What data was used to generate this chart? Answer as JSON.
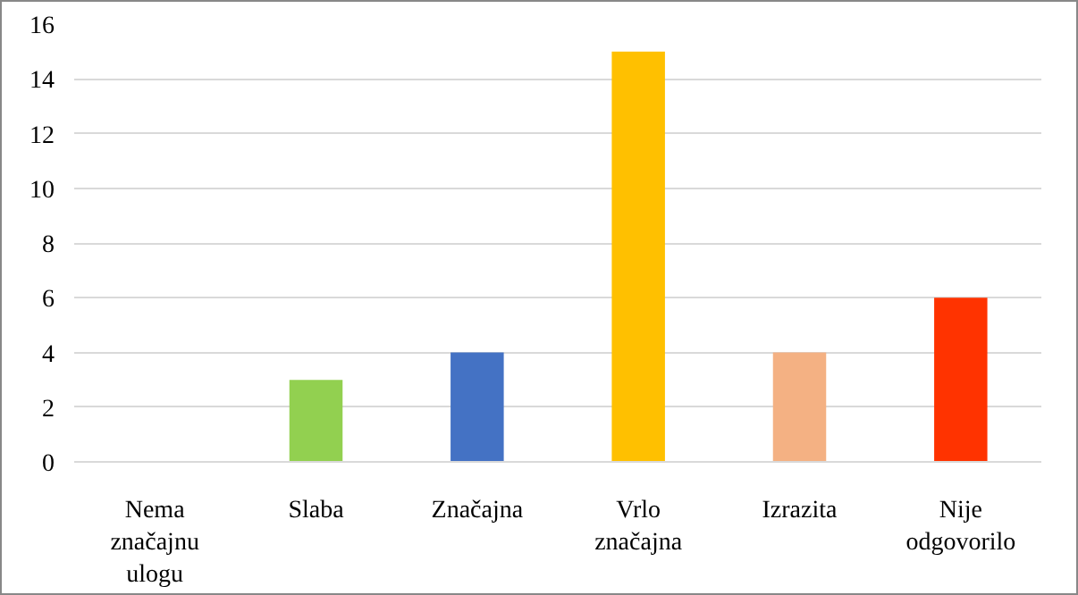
{
  "chart_data": {
    "type": "bar",
    "categories": [
      "Nema značajnu ulogu",
      "Slaba",
      "Značajna",
      "Vrlo značajna",
      "Izrazita",
      "Nije odgovorilo"
    ],
    "values": [
      0,
      3,
      4,
      15,
      4,
      6
    ],
    "colors": [
      "#a5a5a5",
      "#92d050",
      "#4472c4",
      "#ffc000",
      "#f4b183",
      "#ff3300"
    ],
    "ylim": [
      0,
      16
    ],
    "yticks": [
      0,
      2,
      4,
      6,
      8,
      10,
      12,
      14,
      16
    ],
    "grid": "y"
  }
}
